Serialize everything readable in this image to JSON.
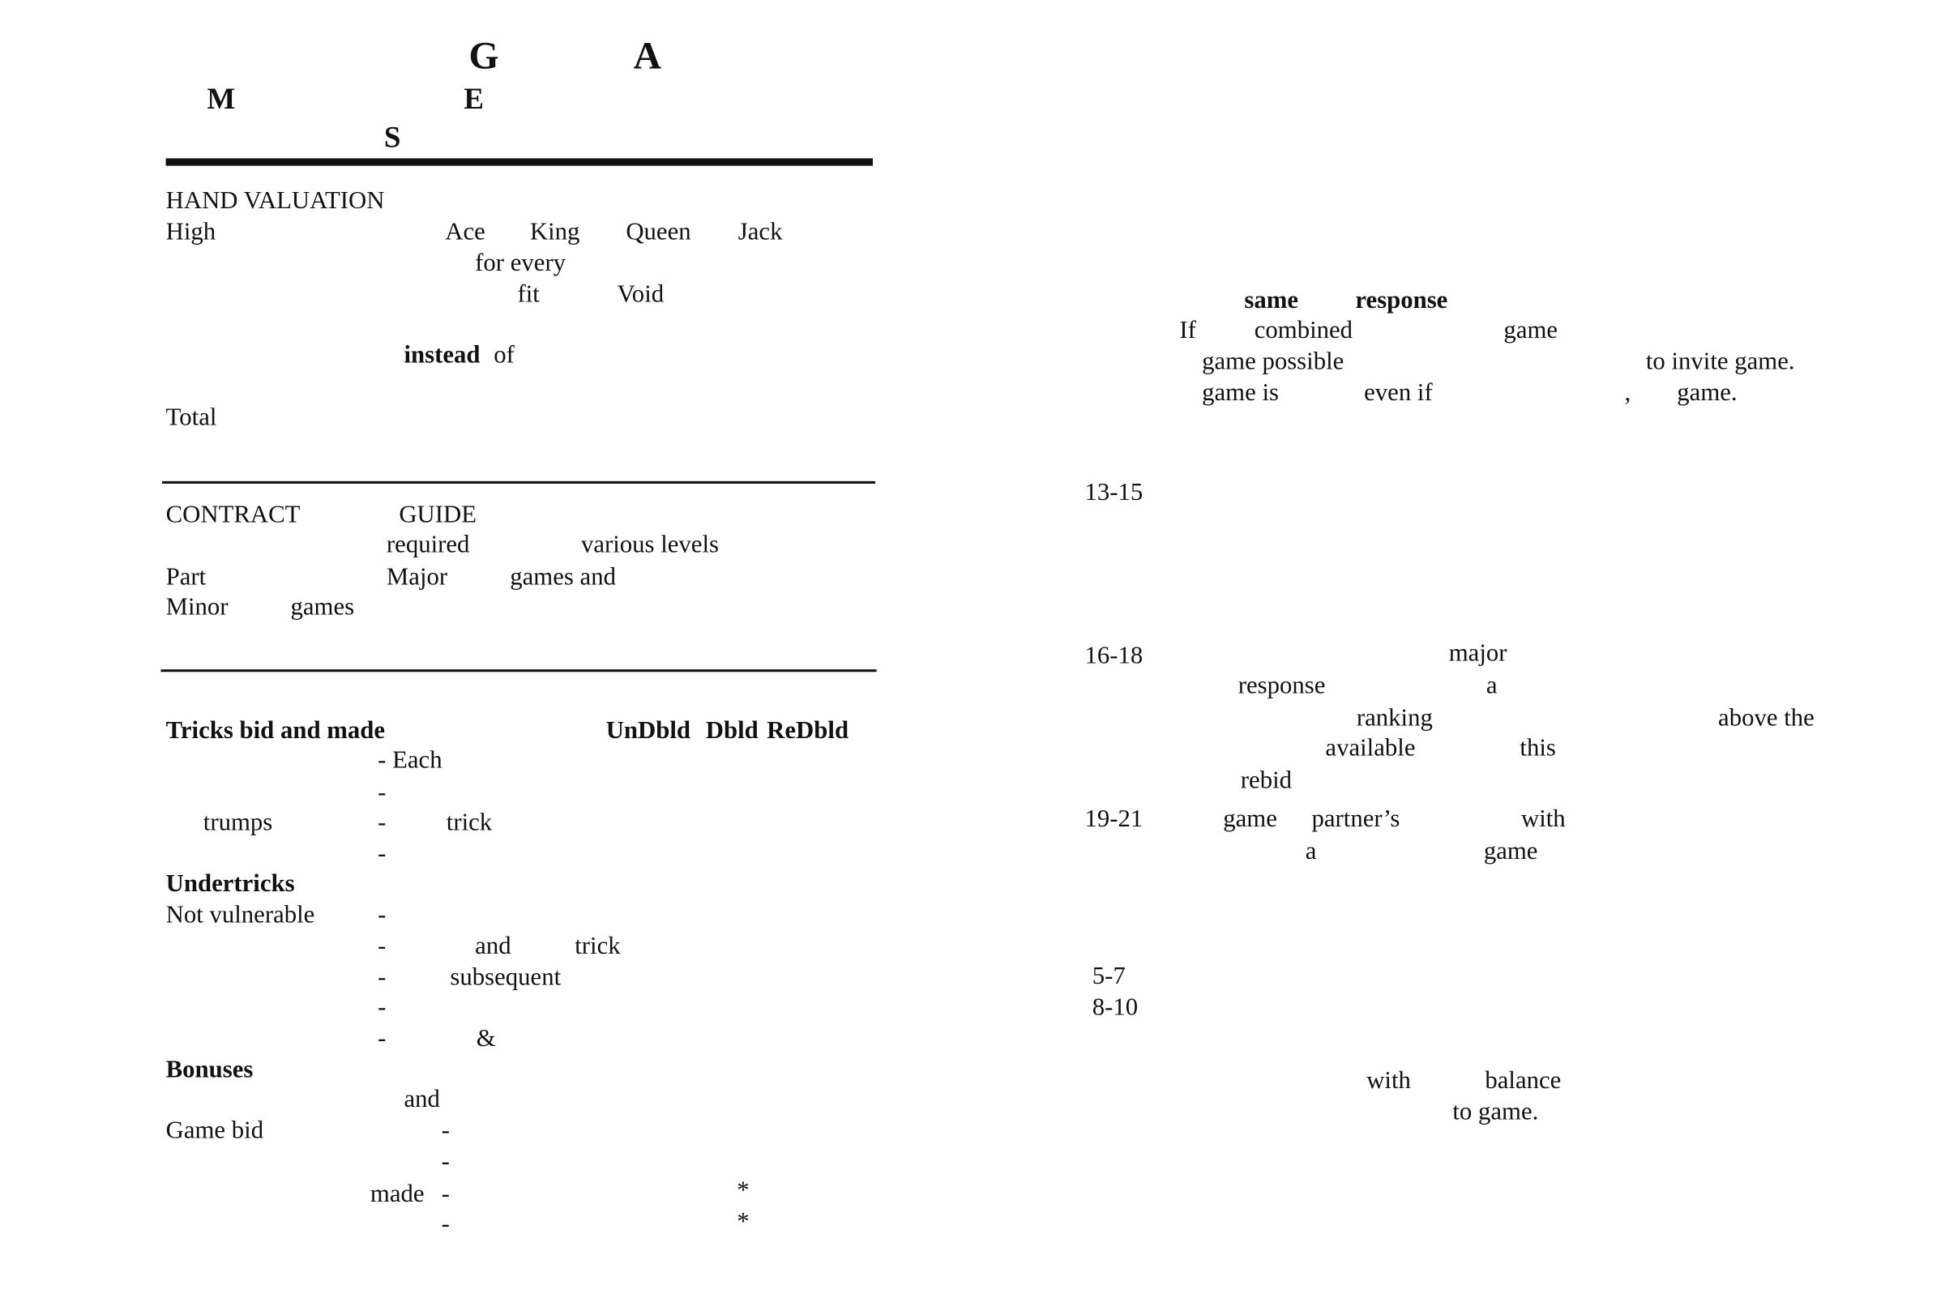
{
  "title_letters": [
    "G",
    "A",
    "M",
    "E",
    "S"
  ],
  "hand_valuation": [
    "HAND VALUATION",
    "High",
    "Ace",
    "King",
    "Queen",
    "Jack",
    "for every",
    "fit",
    "Void",
    "instead",
    "of",
    "Total"
  ],
  "contract_guide": [
    "CONTRACT",
    "GUIDE",
    "required",
    "various levels",
    "Part",
    "Major",
    "games and",
    "Minor",
    "games"
  ],
  "scoring": [
    "Tricks bid and made",
    "UnDbld",
    "Dbld",
    "ReDbld",
    "- Each",
    "-",
    "trumps",
    "-",
    "trick",
    "-",
    "Undertricks",
    "Not vulnerable",
    "-",
    "-",
    "and",
    "trick",
    "-",
    "subsequent",
    "-",
    "-",
    "&",
    "Bonuses",
    "and",
    "Game bid",
    "-",
    "-",
    "made",
    "-",
    "*",
    "-",
    "*"
  ],
  "responses": [
    "same",
    "response",
    "If",
    "combined",
    "game",
    "game possible",
    "to invite game.",
    "game is",
    "even if",
    ",",
    "game.",
    "13-15",
    "16-18",
    "major",
    "response",
    "a",
    "ranking",
    "above the",
    "available",
    "this",
    "rebid",
    "19-21",
    "game",
    "partner’s",
    "with",
    "a",
    "game",
    "5-7",
    "8-10",
    "with",
    "balance",
    "to game."
  ]
}
